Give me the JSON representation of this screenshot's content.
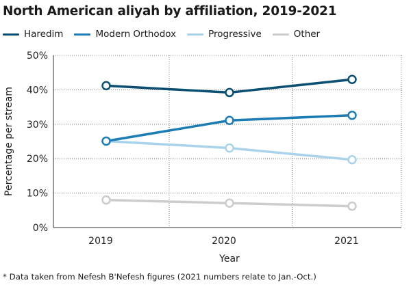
{
  "chart_data": {
    "type": "line",
    "title": "North American aliyah by affiliation, 2019-2021",
    "xlabel": "Year",
    "ylabel": "Percentage per stream",
    "categories": [
      "2019",
      "2020",
      "2021"
    ],
    "ylim": [
      0,
      50
    ],
    "yticks": [
      "0%",
      "10%",
      "20%",
      "30%",
      "40%",
      "50%"
    ],
    "grid": "dotted",
    "legend_position": "top-left",
    "series": [
      {
        "name": "Haredim",
        "color": "#0b4f72",
        "values": [
          41.2,
          39.2,
          43.0
        ]
      },
      {
        "name": "Modern Orthodox",
        "color": "#1c7db5",
        "values": [
          25.1,
          31.1,
          32.6
        ]
      },
      {
        "name": "Progressive",
        "color": "#a9d3ea",
        "values": [
          25.1,
          23.1,
          19.7
        ]
      },
      {
        "name": "Other",
        "color": "#cccccc",
        "values": [
          8.0,
          7.1,
          6.2
        ]
      }
    ]
  },
  "footnote": "* Data taken from Nefesh B'Nefesh figures (2021 numbers relate to Jan.-Oct.)"
}
